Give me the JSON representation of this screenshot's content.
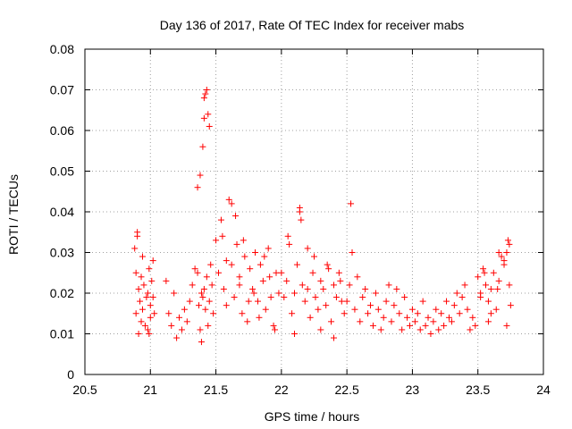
{
  "chart_data": {
    "type": "scatter",
    "title": "Day 136 of 2017, Rate Of TEC Index for receiver mabs",
    "xlabel": "GPS time / hours",
    "ylabel": "ROTI / TECUs",
    "xlim": [
      20.5,
      24
    ],
    "ylim": [
      0,
      0.08
    ],
    "xticks": [
      "20.5",
      "21",
      "21.5",
      "22",
      "22.5",
      "23",
      "23.5",
      "24"
    ],
    "yticks": [
      "0",
      "0.01",
      "0.02",
      "0.03",
      "0.04",
      "0.05",
      "0.06",
      "0.07",
      "0.08"
    ],
    "grid": true,
    "marker": "+",
    "color": "#ff0000",
    "series": [
      {
        "name": "mabs ROTI",
        "x": [
          20.88,
          20.89,
          20.9,
          20.91,
          20.92,
          20.93,
          20.94,
          20.95,
          20.97,
          20.98,
          20.99,
          21.0,
          21.01,
          21.02,
          21.03,
          20.89,
          20.91,
          20.93,
          20.96,
          20.99,
          21.02,
          20.9,
          20.94,
          20.98,
          21.0,
          21.12,
          21.14,
          21.16,
          21.18,
          21.2,
          21.22,
          21.24,
          21.26,
          21.28,
          21.3,
          21.32,
          21.34,
          21.36,
          21.37,
          21.38,
          21.39,
          21.4,
          21.41,
          21.42,
          21.43,
          21.44,
          21.45,
          21.46,
          21.47,
          21.48,
          21.36,
          21.38,
          21.4,
          21.41,
          21.42,
          21.43,
          21.44,
          21.45,
          21.41,
          21.39,
          21.5,
          21.52,
          21.54,
          21.56,
          21.58,
          21.6,
          21.62,
          21.64,
          21.66,
          21.68,
          21.7,
          21.72,
          21.74,
          21.76,
          21.78,
          21.8,
          21.82,
          21.84,
          21.86,
          21.88,
          21.9,
          21.92,
          21.94,
          21.96,
          21.98,
          21.55,
          21.58,
          21.62,
          21.65,
          21.68,
          21.71,
          21.75,
          21.79,
          21.83,
          21.87,
          21.91,
          21.95,
          22.0,
          22.02,
          22.04,
          22.06,
          22.08,
          22.1,
          22.12,
          22.14,
          22.16,
          22.18,
          22.2,
          22.22,
          22.24,
          22.26,
          22.28,
          22.3,
          22.32,
          22.34,
          22.36,
          22.38,
          22.4,
          22.42,
          22.44,
          22.46,
          22.48,
          22.05,
          22.1,
          22.14,
          22.15,
          22.2,
          22.25,
          22.3,
          22.35,
          22.4,
          22.45,
          22.5,
          22.52,
          22.53,
          22.54,
          22.56,
          22.58,
          22.6,
          22.62,
          22.64,
          22.66,
          22.68,
          22.7,
          22.72,
          22.74,
          22.76,
          22.78,
          22.8,
          22.82,
          22.84,
          22.86,
          22.88,
          22.9,
          22.92,
          22.94,
          22.96,
          22.98,
          23.0,
          23.02,
          23.04,
          23.06,
          23.08,
          23.1,
          23.12,
          23.14,
          23.16,
          23.18,
          23.2,
          23.22,
          23.24,
          23.26,
          23.28,
          23.3,
          23.32,
          23.34,
          23.36,
          23.38,
          23.4,
          23.42,
          23.44,
          23.46,
          23.48,
          23.5,
          23.52,
          23.54,
          23.56,
          23.58,
          23.6,
          23.62,
          23.64,
          23.66,
          23.68,
          23.7,
          23.72,
          23.73,
          23.74,
          23.75,
          23.55,
          23.6,
          23.65,
          23.7,
          23.52,
          23.58,
          23.66,
          23.72,
          23.74
        ],
        "y": [
          0.031,
          0.025,
          0.034,
          0.021,
          0.018,
          0.013,
          0.016,
          0.022,
          0.019,
          0.011,
          0.026,
          0.017,
          0.023,
          0.028,
          0.015,
          0.015,
          0.01,
          0.024,
          0.012,
          0.01,
          0.019,
          0.035,
          0.029,
          0.02,
          0.014,
          0.023,
          0.015,
          0.012,
          0.02,
          0.009,
          0.014,
          0.011,
          0.016,
          0.013,
          0.018,
          0.022,
          0.026,
          0.025,
          0.017,
          0.011,
          0.02,
          0.019,
          0.021,
          0.016,
          0.024,
          0.012,
          0.018,
          0.027,
          0.022,
          0.015,
          0.046,
          0.049,
          0.056,
          0.063,
          0.069,
          0.07,
          0.064,
          0.061,
          0.068,
          0.008,
          0.033,
          0.025,
          0.038,
          0.021,
          0.017,
          0.043,
          0.027,
          0.019,
          0.032,
          0.024,
          0.015,
          0.029,
          0.013,
          0.026,
          0.021,
          0.03,
          0.018,
          0.027,
          0.023,
          0.016,
          0.031,
          0.019,
          0.012,
          0.025,
          0.02,
          0.034,
          0.028,
          0.042,
          0.039,
          0.022,
          0.033,
          0.018,
          0.02,
          0.014,
          0.029,
          0.024,
          0.011,
          0.025,
          0.019,
          0.023,
          0.032,
          0.015,
          0.02,
          0.027,
          0.04,
          0.022,
          0.018,
          0.031,
          0.014,
          0.025,
          0.019,
          0.016,
          0.023,
          0.021,
          0.017,
          0.026,
          0.013,
          0.022,
          0.019,
          0.025,
          0.018,
          0.015,
          0.034,
          0.01,
          0.041,
          0.038,
          0.021,
          0.029,
          0.011,
          0.027,
          0.009,
          0.023,
          0.018,
          0.022,
          0.042,
          0.03,
          0.016,
          0.024,
          0.013,
          0.019,
          0.021,
          0.015,
          0.017,
          0.012,
          0.02,
          0.016,
          0.011,
          0.014,
          0.018,
          0.022,
          0.013,
          0.017,
          0.021,
          0.015,
          0.011,
          0.019,
          0.014,
          0.012,
          0.016,
          0.013,
          0.015,
          0.011,
          0.018,
          0.012,
          0.014,
          0.01,
          0.013,
          0.016,
          0.011,
          0.015,
          0.012,
          0.018,
          0.014,
          0.013,
          0.017,
          0.02,
          0.015,
          0.019,
          0.022,
          0.016,
          0.011,
          0.014,
          0.012,
          0.024,
          0.02,
          0.026,
          0.022,
          0.018,
          0.021,
          0.025,
          0.016,
          0.023,
          0.029,
          0.027,
          0.03,
          0.033,
          0.032,
          0.017,
          0.025,
          0.015,
          0.021,
          0.028,
          0.019,
          0.013,
          0.03,
          0.012,
          0.022
        ]
      }
    ]
  }
}
